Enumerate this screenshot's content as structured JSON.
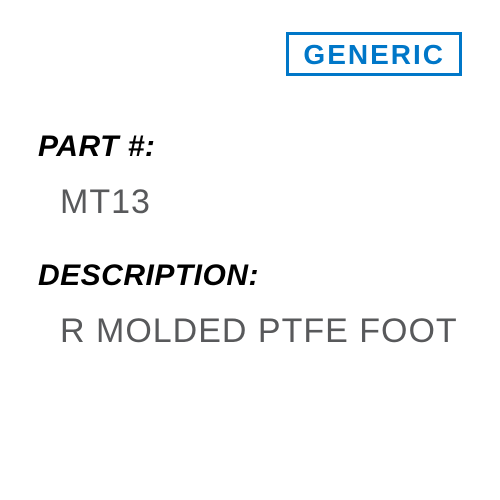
{
  "brand": {
    "label": "GENERIC"
  },
  "part": {
    "label": "PART #:",
    "value": "MT13"
  },
  "description": {
    "label": "DESCRIPTION:",
    "value": "R MOLDED PTFE FOOT"
  },
  "colors": {
    "brand_border": "#0077c8",
    "brand_text": "#0077c8",
    "label_text": "#000000",
    "value_text": "#58595b",
    "background": "#ffffff"
  },
  "typography": {
    "brand_fontsize": 28,
    "label_fontsize": 30,
    "value_fontsize": 34,
    "font_family": "Arial"
  }
}
